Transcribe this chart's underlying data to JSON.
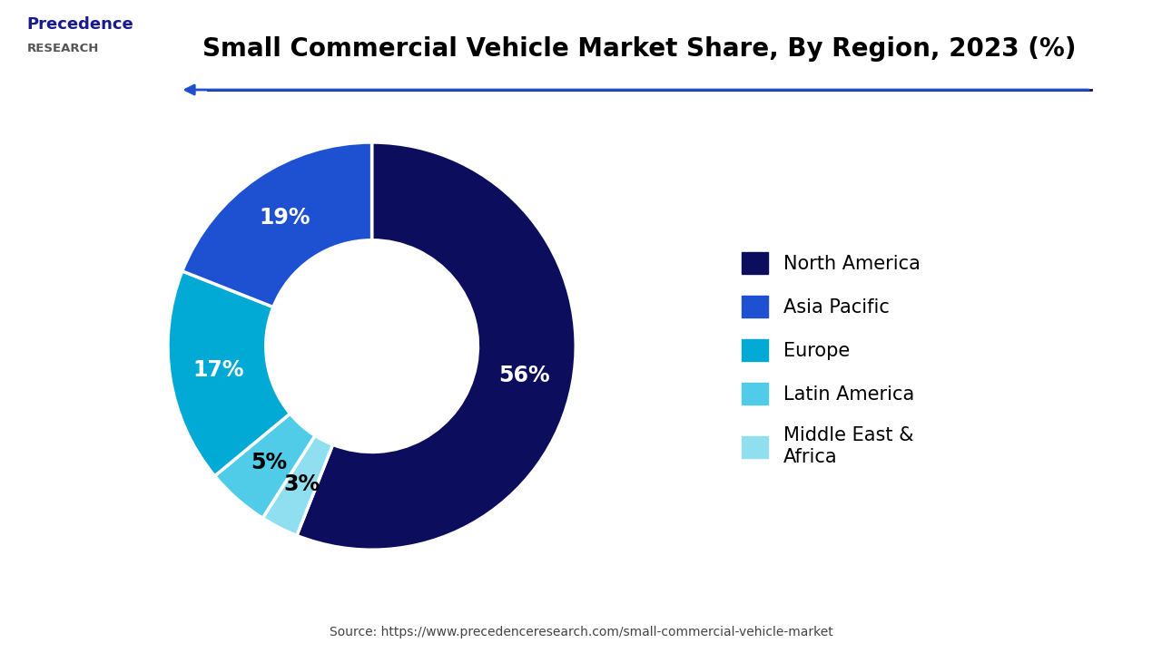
{
  "title": "Small Commercial Vehicle Market Share, By Region, 2023 (%)",
  "labels": [
    "North America",
    "Asia Pacific",
    "Europe",
    "Latin America",
    "Middle East &\nAfrica"
  ],
  "values": [
    56,
    19,
    17,
    5,
    3
  ],
  "colors": [
    "#0d0d5e",
    "#1e50d2",
    "#00aad4",
    "#50cce8",
    "#90dff0"
  ],
  "pct_labels": [
    "56%",
    "19%",
    "17%",
    "5%",
    "3%"
  ],
  "pct_label_colors": [
    "white",
    "white",
    "white",
    "black",
    "black"
  ],
  "source_text": "Source: https://www.precedenceresearch.com/small-commercial-vehicle-market",
  "arrow_color": "#1e4fcc",
  "line_color": "#0d0d5e",
  "background_color": "#ffffff",
  "title_fontsize": 20,
  "legend_fontsize": 15,
  "pct_fontsize": 17,
  "start_angle": 90
}
